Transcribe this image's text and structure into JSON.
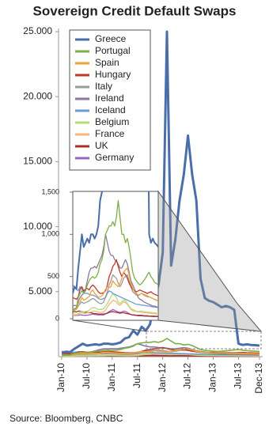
{
  "chart_data": {
    "type": "line",
    "title": "Sovereign Credit Default Swaps",
    "source": "Source: Bloomberg, CNBC",
    "categories": [
      "Jan-10",
      null,
      null,
      null,
      null,
      null,
      "Jul-10",
      null,
      null,
      null,
      null,
      null,
      "Jan-11",
      null,
      null,
      null,
      null,
      null,
      "Jul-11",
      null,
      null,
      null,
      null,
      null,
      "Jan-12",
      null,
      null,
      null,
      null,
      null,
      "Jul-12",
      null,
      null,
      null,
      null,
      null,
      "Jan-13",
      null,
      null,
      null,
      null,
      null,
      "Jul-13",
      null,
      null,
      null,
      null,
      "Dec-13"
    ],
    "ylim": [
      0,
      25000
    ],
    "yticks": [
      {
        "value": 5000,
        "label": "5.000"
      },
      {
        "value": 10000,
        "label": "10.000"
      },
      {
        "value": 15000,
        "label": "15.000"
      },
      {
        "value": 20000,
        "label": "20.000"
      },
      {
        "value": 25000,
        "label": "25.000"
      }
    ],
    "legend": "upper left",
    "series": [
      {
        "name": "Greece",
        "color": "#4a6ea8",
        "values": [
          300,
          380,
          350,
          600,
          800,
          1000,
          850,
          900,
          950,
          900,
          1000,
          1000,
          950,
          1000,
          1100,
          1400,
          1500,
          2000,
          1700,
          2300,
          2000,
          2500,
          4500,
          5500,
          8000,
          25000,
          7000,
          9000,
          12000,
          14000,
          17000,
          14000,
          12000,
          6000,
          4500,
          4300,
          4200,
          4000,
          3800,
          3900,
          3800,
          3600,
          1000,
          900,
          950,
          900,
          880,
          850
        ]
      },
      {
        "name": "Portugal",
        "color": "#7fae45",
        "values": [
          90,
          120,
          130,
          250,
          300,
          330,
          300,
          330,
          400,
          450,
          480,
          500,
          480,
          500,
          550,
          650,
          700,
          800,
          1000,
          1050,
          1100,
          1100,
          1150,
          1100,
          1200,
          1400,
          1200,
          1000,
          1000,
          900,
          950,
          850,
          700,
          550,
          480,
          450,
          420,
          400,
          420,
          450,
          480,
          520,
          550,
          500,
          470,
          430,
          420,
          400
        ]
      },
      {
        "name": "Spain",
        "color": "#f0a23a",
        "values": [
          90,
          100,
          110,
          180,
          200,
          250,
          220,
          230,
          250,
          260,
          320,
          340,
          300,
          280,
          250,
          260,
          270,
          300,
          350,
          380,
          370,
          380,
          450,
          420,
          400,
          380,
          420,
          480,
          550,
          580,
          600,
          520,
          420,
          360,
          320,
          300,
          280,
          290,
          300,
          290,
          280,
          270,
          260,
          250,
          240,
          230,
          220,
          200
        ]
      },
      {
        "name": "Hungary",
        "color": "#c0392b",
        "values": [
          250,
          240,
          230,
          260,
          350,
          380,
          330,
          350,
          360,
          340,
          380,
          400,
          380,
          350,
          320,
          300,
          300,
          310,
          330,
          400,
          500,
          550,
          620,
          650,
          700,
          620,
          550,
          500,
          550,
          520,
          480,
          420,
          380,
          350,
          330,
          320,
          330,
          340,
          330,
          320,
          310,
          300,
          310,
          320,
          300,
          290,
          280,
          270
        ]
      },
      {
        "name": "Italy",
        "color": "#9a9a9a",
        "values": [
          110,
          120,
          110,
          150,
          180,
          200,
          180,
          190,
          200,
          210,
          230,
          240,
          230,
          210,
          190,
          180,
          180,
          200,
          260,
          320,
          400,
          450,
          520,
          500,
          480,
          420,
          380,
          420,
          480,
          500,
          520,
          450,
          380,
          320,
          300,
          280,
          270,
          290,
          300,
          280,
          270,
          260,
          260,
          250,
          240,
          230,
          220,
          210
        ]
      },
      {
        "name": "Ireland",
        "color": "#8a7a9e",
        "values": [
          150,
          160,
          150,
          200,
          250,
          280,
          300,
          350,
          450,
          550,
          600,
          600,
          620,
          600,
          650,
          700,
          750,
          850,
          1000,
          900,
          800,
          750,
          750,
          700,
          680,
          650,
          600,
          600,
          650,
          700,
          650,
          550,
          450,
          400,
          350,
          300,
          250,
          230,
          220,
          200,
          190,
          180,
          170,
          160,
          150,
          150,
          140,
          140
        ]
      },
      {
        "name": "Iceland",
        "color": "#6b9bd1",
        "values": [
          400,
          380,
          350,
          330,
          380,
          350,
          320,
          300,
          300,
          290,
          280,
          280,
          270,
          260,
          240,
          230,
          230,
          240,
          250,
          300,
          330,
          320,
          300,
          290,
          280,
          270,
          260,
          250,
          240,
          230,
          220,
          210,
          200,
          190,
          180,
          170,
          170,
          165,
          160,
          160,
          155,
          150,
          150,
          145,
          140,
          140,
          135,
          130
        ]
      },
      {
        "name": "Belgium",
        "color": "#b5dc78",
        "values": [
          50,
          55,
          50,
          60,
          80,
          90,
          80,
          85,
          90,
          100,
          120,
          130,
          130,
          120,
          110,
          110,
          110,
          120,
          150,
          180,
          220,
          260,
          300,
          280,
          250,
          200,
          180,
          200,
          220,
          210,
          180,
          150,
          120,
          110,
          100,
          90,
          85,
          90,
          90,
          85,
          80,
          80,
          75,
          75,
          70,
          70,
          65,
          60
        ]
      },
      {
        "name": "France",
        "color": "#f6b77c",
        "values": [
          40,
          45,
          45,
          50,
          65,
          70,
          65,
          65,
          70,
          75,
          80,
          90,
          90,
          85,
          80,
          75,
          75,
          80,
          100,
          140,
          170,
          190,
          220,
          210,
          200,
          170,
          160,
          180,
          200,
          190,
          170,
          140,
          110,
          95,
          90,
          85,
          80,
          80,
          75,
          70,
          70,
          70,
          65,
          65,
          60,
          60,
          55,
          55
        ]
      },
      {
        "name": "UK",
        "color": "#a82d2d",
        "values": [
          80,
          85,
          80,
          90,
          90,
          85,
          80,
          75,
          75,
          70,
          70,
          65,
          60,
          60,
          55,
          55,
          55,
          55,
          60,
          65,
          75,
          80,
          85,
          80,
          75,
          70,
          65,
          70,
          70,
          65,
          60,
          55,
          50,
          45,
          45,
          40,
          40,
          40,
          40,
          35,
          35,
          35,
          30,
          30,
          30,
          30,
          28,
          28
        ]
      },
      {
        "name": "Germany",
        "color": "#9b63c4",
        "values": [
          35,
          40,
          38,
          40,
          45,
          45,
          40,
          40,
          42,
          45,
          50,
          55,
          50,
          48,
          45,
          45,
          45,
          45,
          55,
          70,
          85,
          95,
          110,
          100,
          90,
          80,
          75,
          80,
          90,
          85,
          75,
          60,
          50,
          45,
          40,
          38,
          35,
          35,
          33,
          32,
          30,
          30,
          28,
          28,
          25,
          25,
          25,
          24
        ]
      }
    ],
    "inset": {
      "ylim": [
        0,
        1500
      ],
      "yticks": [
        {
          "value": 0,
          "label": "0"
        },
        {
          "value": 500,
          "label": "500"
        },
        {
          "value": 1000,
          "label": "1,000"
        },
        {
          "value": 1500,
          "label": "1,500"
        }
      ]
    }
  }
}
